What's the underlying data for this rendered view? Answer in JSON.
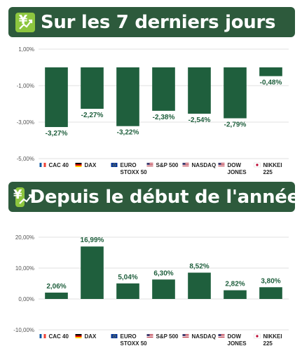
{
  "sections": [
    {
      "title": "Sur les 7 derniers jours",
      "icon": "yen-chart-icon"
    },
    {
      "title": "Depuis le début de l'année",
      "icon": "yen-chart-icon"
    }
  ],
  "colors": {
    "bar": "#1f5f3d",
    "banner": "#2d5a3c",
    "icon": "#8dc63f",
    "label": "#1f5f3d"
  },
  "chart_data": [
    {
      "type": "bar",
      "title": "Sur les 7 derniers jours",
      "categories": [
        {
          "label": [
            "CAC 40"
          ],
          "flag": "fr"
        },
        {
          "label": [
            "DAX"
          ],
          "flag": "de"
        },
        {
          "label": [
            "EURO",
            "STOXX 50"
          ],
          "flag": "eu"
        },
        {
          "label": [
            "S&P 500"
          ],
          "flag": "us"
        },
        {
          "label": [
            "NASDAQ"
          ],
          "flag": "us"
        },
        {
          "label": [
            "DOW",
            "JONES"
          ],
          "flag": "us"
        },
        {
          "label": [
            "NIKKEI",
            "225"
          ],
          "flag": "jp"
        }
      ],
      "values": [
        -3.27,
        -2.27,
        -3.22,
        -2.38,
        -2.54,
        -2.79,
        -0.48
      ],
      "value_labels": [
        "-3,27%",
        "-2,27%",
        "-3,22%",
        "-2,38%",
        "-2,54%",
        "-2,79%",
        "-0,48%"
      ],
      "yticks": [
        1.0,
        -1.0,
        -3.0,
        -5.0
      ],
      "ytick_labels": [
        "1,00%",
        "-1,00%",
        "-3,00%",
        "-5,00%"
      ],
      "ylim": [
        -5.0,
        1.0
      ],
      "baseline": 0
    },
    {
      "type": "bar",
      "title": "Depuis le début de l'année",
      "categories": [
        {
          "label": [
            "CAC 40"
          ],
          "flag": "fr"
        },
        {
          "label": [
            "DAX"
          ],
          "flag": "de"
        },
        {
          "label": [
            "EURO",
            "STOXX 50"
          ],
          "flag": "eu"
        },
        {
          "label": [
            "S&P 500"
          ],
          "flag": "us"
        },
        {
          "label": [
            "NASDAQ"
          ],
          "flag": "us"
        },
        {
          "label": [
            "DOW",
            "JONES"
          ],
          "flag": "us"
        },
        {
          "label": [
            "NIKKEI",
            "225"
          ],
          "flag": "jp"
        }
      ],
      "values": [
        2.06,
        16.99,
        5.04,
        6.3,
        8.52,
        2.82,
        3.8
      ],
      "value_labels": [
        "2,06%",
        "16,99%",
        "5,04%",
        "6,30%",
        "8,52%",
        "2,82%",
        "3,80%"
      ],
      "yticks": [
        20.0,
        10.0,
        0.0,
        -10.0
      ],
      "ytick_labels": [
        "20,00%",
        "10,00%",
        "0,00%",
        "-10,00%"
      ],
      "ylim": [
        -10.0,
        20.0
      ],
      "baseline": 0
    }
  ]
}
